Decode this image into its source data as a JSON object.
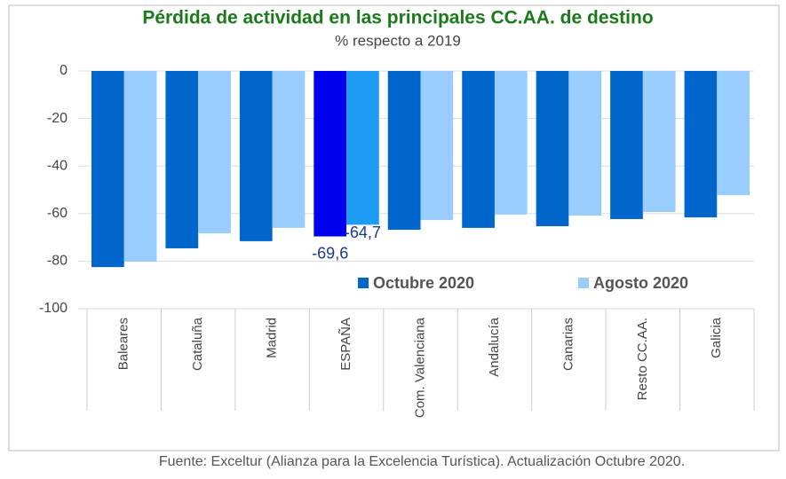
{
  "chart_data": {
    "type": "bar",
    "title": "Pérdida de actividad en las principales CC.AA. de destino",
    "subtitle": "% respecto a 2019",
    "source": "Fuente: Exceltur (Alianza para la Excelencia Turística). Actualización Octubre 2020.",
    "categories": [
      "Baleares",
      "Cataluña",
      "Madrid",
      "ESPAÑA",
      "Com. Valenciana",
      "Andalucía",
      "Canarias",
      "Resto CC.AA.",
      "Galicia"
    ],
    "series": [
      {
        "name": "Octubre 2020",
        "color": "#0066cc",
        "colors": [
          "#0066cc",
          "#0066cc",
          "#0066cc",
          "#0000ee",
          "#0066cc",
          "#0066cc",
          "#0066cc",
          "#0066cc",
          "#0066cc"
        ],
        "values": [
          -82.5,
          -74.6,
          -71.6,
          -69.6,
          -66.8,
          -66,
          -65.3,
          -62.3,
          -61.6
        ],
        "value_labels": [
          null,
          null,
          null,
          "-69,6",
          null,
          null,
          null,
          null,
          null
        ]
      },
      {
        "name": "Agosto 2020",
        "color": "#99ccff",
        "colors": [
          "#99ccff",
          "#99ccff",
          "#99ccff",
          "#1e9bf5",
          "#99ccff",
          "#99ccff",
          "#99ccff",
          "#99ccff",
          "#99ccff"
        ],
        "values": [
          -80.2,
          -68.3,
          -66,
          -64.7,
          -62.7,
          -60.4,
          -60.8,
          -59.3,
          -52.2
        ],
        "value_labels": [
          null,
          null,
          null,
          "-64,7",
          null,
          null,
          null,
          null,
          null
        ]
      }
    ],
    "ylim": [
      -100,
      0
    ],
    "yticks": [
      0,
      -20,
      -40,
      -60,
      -80,
      -100
    ],
    "grid": true,
    "legend": "lower-right"
  }
}
